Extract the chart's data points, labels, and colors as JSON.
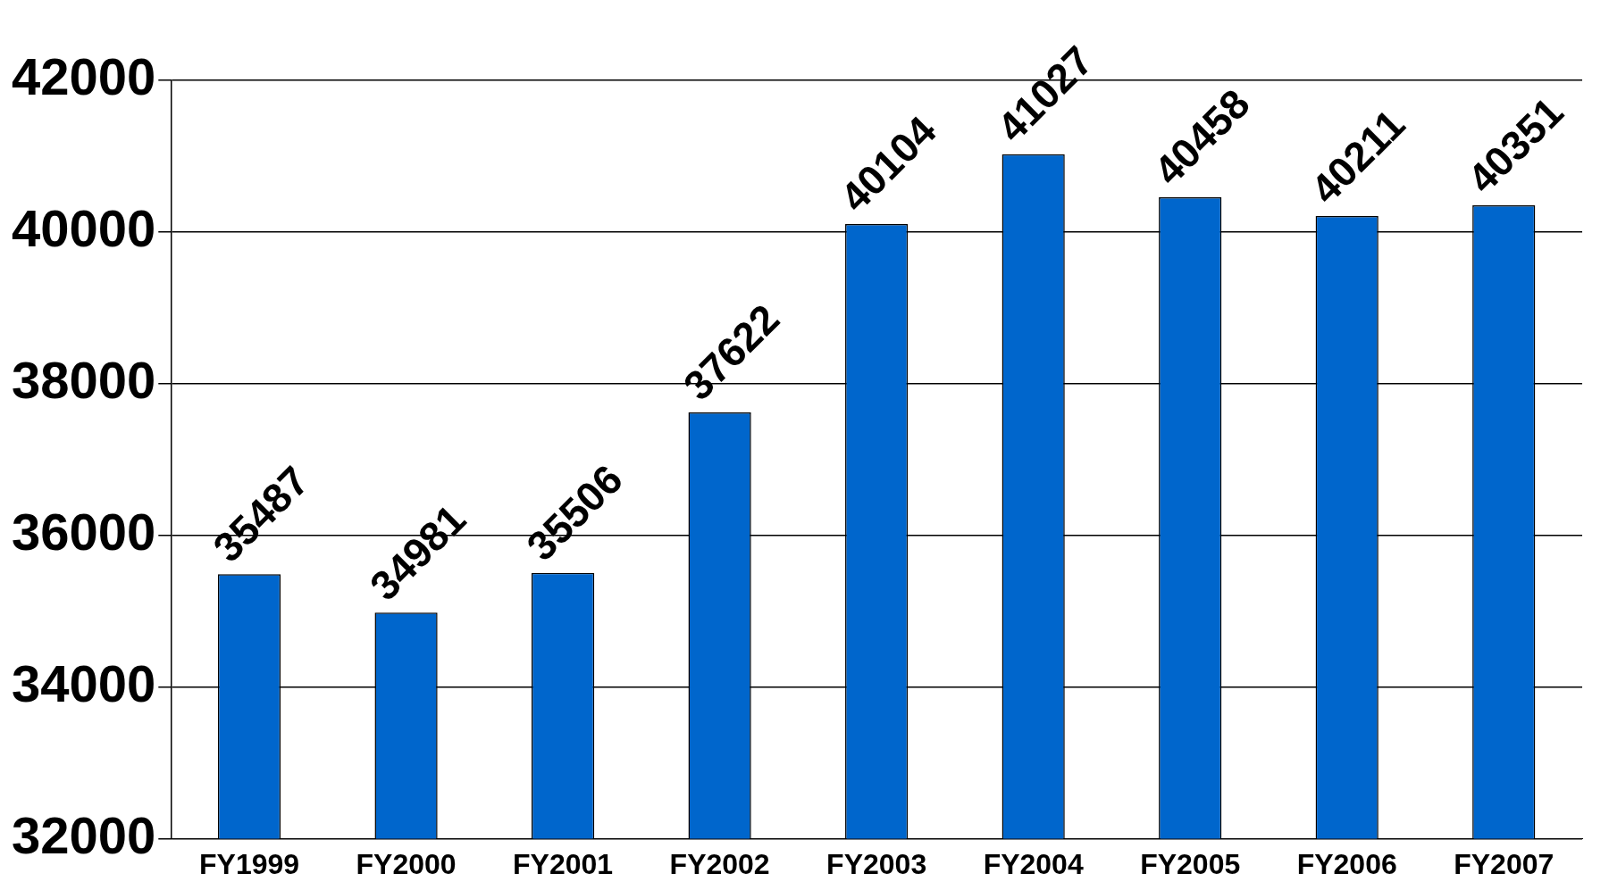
{
  "chart_data": {
    "type": "bar",
    "categories": [
      "FY1999",
      "FY2000",
      "FY2001",
      "FY2002",
      "FY2003",
      "FY2004",
      "FY2005",
      "FY2006",
      "FY2007"
    ],
    "values": [
      35487,
      34981,
      35506,
      37622,
      40104,
      41027,
      40458,
      40211,
      40351
    ],
    "color": "#0066cc",
    "ylim": [
      32000,
      42000
    ],
    "yticks": [
      32000,
      34000,
      36000,
      38000,
      40000,
      42000
    ],
    "grid": "y",
    "data_labels": true
  }
}
